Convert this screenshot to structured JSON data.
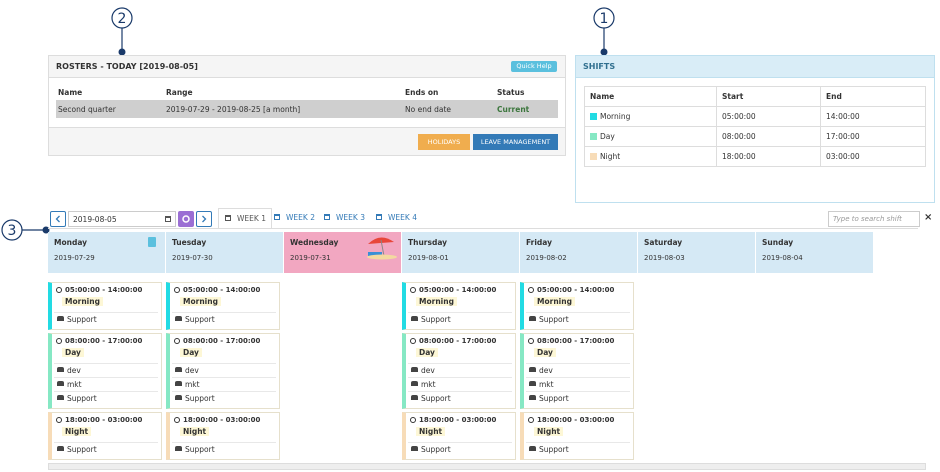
{
  "callouts": [
    "2",
    "1",
    "3"
  ],
  "rosters": {
    "title": "ROSTERS - TODAY [2019-08-05]",
    "quick_help": "Quick Help",
    "columns": [
      "Name",
      "Range",
      "Ends on",
      "Status"
    ],
    "rows": [
      [
        "Second quarter",
        "2019-07-29 - 2019-08-25 [a month]",
        "No end date",
        "Current"
      ]
    ],
    "buttons": [
      "HOLIDAYS",
      "LEAVE MANAGEMENT"
    ]
  },
  "shifts": {
    "title": "SHIFTS",
    "columns": [
      "Name",
      "Start",
      "End"
    ],
    "rows": [
      {
        "name": "Morning",
        "start": "05:00:00",
        "end": "14:00:00",
        "color": "#22dbe3"
      },
      {
        "name": "Day",
        "start": "08:00:00",
        "end": "17:00:00",
        "color": "#86e8c4"
      },
      {
        "name": "Night",
        "start": "18:00:00",
        "end": "03:00:00",
        "color": "#f7dcb8"
      }
    ]
  },
  "toolbar": {
    "date": "2019-08-05",
    "tabs": [
      "WEEK 1",
      "WEEK 2",
      "WEEK 3",
      "WEEK 4"
    ],
    "search_placeholder": "Type to search shift",
    "close": "×"
  },
  "days": [
    {
      "name": "Monday",
      "date": "2019-07-29",
      "color": "#d5e9f5",
      "cards": [
        {
          "time": "05:00:00 - 14:00:00",
          "shift": "Morning",
          "groups": [
            "Support"
          ]
        },
        {
          "time": "08:00:00 - 17:00:00",
          "shift": "Day",
          "groups": [
            "dev",
            "mkt",
            "Support"
          ]
        },
        {
          "time": "18:00:00 - 03:00:00",
          "shift": "Night",
          "groups": [
            "Support"
          ]
        }
      ]
    },
    {
      "name": "Tuesday",
      "date": "2019-07-30",
      "color": "#d5e9f5",
      "cards": [
        {
          "time": "05:00:00 - 14:00:00",
          "shift": "Morning",
          "groups": [
            "Support"
          ]
        },
        {
          "time": "08:00:00 - 17:00:00",
          "shift": "Day",
          "groups": [
            "dev",
            "mkt",
            "Support"
          ]
        },
        {
          "time": "18:00:00 - 03:00:00",
          "shift": "Night",
          "groups": [
            "Support"
          ]
        }
      ]
    },
    {
      "name": "Wednesday",
      "date": "2019-07-31",
      "color": "#f2a7c1",
      "cards": []
    },
    {
      "name": "Thursday",
      "date": "2019-08-01",
      "color": "#d5e9f5",
      "cards": [
        {
          "time": "05:00:00 - 14:00:00",
          "shift": "Morning",
          "groups": [
            "Support"
          ]
        },
        {
          "time": "08:00:00 - 17:00:00",
          "shift": "Day",
          "groups": [
            "dev",
            "mkt",
            "Support"
          ]
        },
        {
          "time": "18:00:00 - 03:00:00",
          "shift": "Night",
          "groups": [
            "Support"
          ]
        }
      ]
    },
    {
      "name": "Friday",
      "date": "2019-08-02",
      "color": "#d5e9f5",
      "cards": [
        {
          "time": "05:00:00 - 14:00:00",
          "shift": "Morning",
          "groups": [
            "Support"
          ]
        },
        {
          "time": "08:00:00 - 17:00:00",
          "shift": "Day",
          "groups": [
            "dev",
            "mkt",
            "Support"
          ]
        },
        {
          "time": "18:00:00 - 03:00:00",
          "shift": "Night",
          "groups": [
            "Support"
          ]
        }
      ]
    },
    {
      "name": "Saturday",
      "date": "2019-08-03",
      "color": "#d5e9f5",
      "cards": []
    },
    {
      "name": "Sunday",
      "date": "2019-08-04",
      "color": "#d5e9f5",
      "cards": []
    }
  ]
}
